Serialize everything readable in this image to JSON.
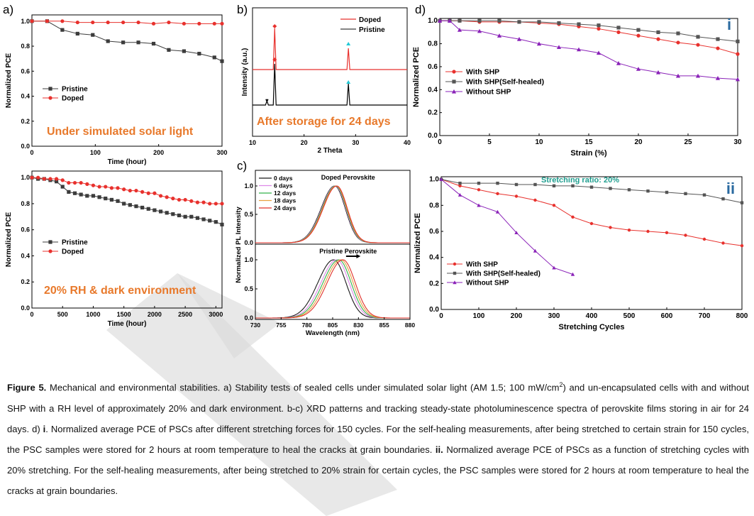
{
  "figure": {
    "panel_labels": [
      "a)",
      "b)",
      "c)",
      "d)"
    ],
    "caption": {
      "lead": "Figure 5.",
      "p1": " Mechanical and environmental stabilities. a) Stability tests of sealed cells under simulated solar light (AM 1.5; 100 mW/cm",
      "sup": "2",
      "p2": ") and un-encapsulated cells with and without SHP with a RH level of approximately 20% and dark environment. b-c) XRD patterns and tracking steady-state photoluminescence spectra of perovskite films storing in air for 24 days. d) ",
      "b_i": "i",
      "p3": ". Normalized average PCE of PSCs after different stretching forces for 150 cycles. For the self-healing measurements, after being stretched to certain strain for 150 cycles, the PSC samples were stored for 2 hours at room temperature to heal the cracks at grain boundaries. ",
      "b_ii": "ii.",
      "p4": " Normalized average PCE of PSCs as a function of stretching cycles with 20% stretching. For the self-healing measurements, after being stretched to 20% strain for certain cycles, the PSC samples were stored for 2 hours at room temperature to heal the cracks at grain boundaries."
    }
  },
  "colors": {
    "red": "#e8312d",
    "black": "#3c3c3c",
    "gray": "#555555",
    "purple": "#8a22b8",
    "cyan": "#22c9d6",
    "orange": "#e8792b",
    "pl": [
      "#1a1a1a",
      "#dd88e8",
      "#33b24a",
      "#e8a040",
      "#e0302a"
    ]
  },
  "chart_data": [
    {
      "id": "a_top",
      "type": "line",
      "annotation": "Under simulated solar light",
      "xlabel": "Time (hour)",
      "ylabel": "Normalized PCE",
      "xlim": [
        0,
        300
      ],
      "ylim": [
        0,
        1.05
      ],
      "xticks": [
        0,
        100,
        200,
        300
      ],
      "yticks": [
        0.0,
        0.2,
        0.4,
        0.6,
        0.8,
        1.0
      ],
      "legend": "bottom-left",
      "series": [
        {
          "name": "Pristine",
          "color": "black",
          "marker": "square",
          "x": [
            0,
            24,
            48,
            72,
            96,
            120,
            144,
            168,
            192,
            216,
            240,
            264,
            288,
            300
          ],
          "y": [
            1.0,
            1.0,
            0.93,
            0.9,
            0.89,
            0.84,
            0.83,
            0.83,
            0.82,
            0.77,
            0.76,
            0.74,
            0.71,
            0.68
          ]
        },
        {
          "name": "Doped",
          "color": "red",
          "marker": "circle",
          "x": [
            0,
            24,
            48,
            72,
            96,
            120,
            144,
            168,
            192,
            216,
            240,
            264,
            288,
            300
          ],
          "y": [
            1.0,
            1.0,
            1.0,
            0.99,
            0.99,
            0.99,
            0.99,
            0.99,
            0.98,
            0.99,
            0.98,
            0.98,
            0.98,
            0.98
          ]
        }
      ]
    },
    {
      "id": "a_bottom",
      "type": "line",
      "annotation": "20% RH & dark environment",
      "xlabel": "Time (hour)",
      "ylabel": "Normalized PCE",
      "xlim": [
        0,
        3100
      ],
      "ylim": [
        0,
        1.05
      ],
      "xticks": [
        0,
        500,
        1000,
        1500,
        2000,
        2500,
        3000
      ],
      "yticks": [
        0.0,
        0.2,
        0.4,
        0.6,
        0.8,
        1.0
      ],
      "legend": "bottom-left",
      "series": [
        {
          "name": "Pristine",
          "color": "black",
          "marker": "square",
          "x": [
            0,
            100,
            200,
            300,
            400,
            500,
            600,
            700,
            800,
            900,
            1000,
            1100,
            1200,
            1300,
            1400,
            1500,
            1600,
            1700,
            1800,
            1900,
            2000,
            2100,
            2200,
            2300,
            2400,
            2500,
            2600,
            2700,
            2800,
            2900,
            3000,
            3100
          ],
          "y": [
            1.0,
            0.99,
            0.99,
            0.98,
            0.97,
            0.93,
            0.89,
            0.88,
            0.87,
            0.86,
            0.86,
            0.85,
            0.84,
            0.83,
            0.82,
            0.8,
            0.79,
            0.78,
            0.77,
            0.76,
            0.75,
            0.74,
            0.73,
            0.72,
            0.71,
            0.7,
            0.7,
            0.69,
            0.68,
            0.67,
            0.66,
            0.64
          ]
        },
        {
          "name": "Doped",
          "color": "red",
          "marker": "circle",
          "x": [
            0,
            100,
            200,
            300,
            400,
            500,
            600,
            700,
            800,
            900,
            1000,
            1100,
            1200,
            1300,
            1400,
            1500,
            1600,
            1700,
            1800,
            1900,
            2000,
            2100,
            2200,
            2300,
            2400,
            2500,
            2600,
            2700,
            2800,
            2900,
            3000,
            3100
          ],
          "y": [
            1.0,
            1.0,
            0.99,
            0.99,
            0.99,
            0.98,
            0.96,
            0.96,
            0.96,
            0.95,
            0.94,
            0.93,
            0.93,
            0.92,
            0.92,
            0.91,
            0.9,
            0.9,
            0.89,
            0.88,
            0.88,
            0.86,
            0.85,
            0.84,
            0.83,
            0.83,
            0.82,
            0.81,
            0.81,
            0.8,
            0.8,
            0.8
          ]
        }
      ]
    },
    {
      "id": "b",
      "type": "line",
      "annotation": "After storage for 24 days",
      "xlabel": "2 Theta",
      "ylabel": "Intensity (a.u.)",
      "xlim": [
        10,
        40
      ],
      "xticks": [
        10,
        20,
        30,
        40
      ],
      "legend": "top-right",
      "peaks": {
        "doped": [
          14.3,
          28.6
        ],
        "pristine": [
          12.8,
          14.3,
          28.6
        ]
      },
      "series": [
        {
          "name": "Doped",
          "color": "red"
        },
        {
          "name": "Pristine",
          "color": "black"
        }
      ]
    },
    {
      "id": "c",
      "type": "line",
      "xlabel": "Wavelength (nm)",
      "ylabel": "Normalized PL Intensity",
      "xlim": [
        730,
        880
      ],
      "xticks": [
        730,
        755,
        780,
        805,
        830,
        855,
        880
      ],
      "yticks": [
        0.0,
        0.5,
        1.0
      ],
      "subtitles": [
        "Doped Perovskite",
        "Pristine Perovskite"
      ],
      "legend": "top-left",
      "series": [
        {
          "name": "0 days",
          "doped_peak": 807,
          "pristine_peak": 806
        },
        {
          "name": "6 days",
          "doped_peak": 807.5,
          "pristine_peak": 809
        },
        {
          "name": "12 days",
          "doped_peak": 808,
          "pristine_peak": 811
        },
        {
          "name": "18 days",
          "doped_peak": 808.5,
          "pristine_peak": 813
        },
        {
          "name": "24 days",
          "doped_peak": 809,
          "pristine_peak": 815
        }
      ]
    },
    {
      "id": "d_i",
      "type": "line",
      "tag": "i",
      "xlabel": "Strain (%)",
      "ylabel": "Normalized PCE",
      "xlim": [
        0,
        30
      ],
      "ylim": [
        0,
        1.02
      ],
      "xticks": [
        0,
        5,
        10,
        15,
        20,
        25,
        30
      ],
      "yticks": [
        0.0,
        0.2,
        0.4,
        0.6,
        0.8,
        1.0
      ],
      "legend": "middle-left",
      "series": [
        {
          "name": "With SHP",
          "color": "red",
          "marker": "circle",
          "x": [
            0,
            1,
            2,
            4,
            6,
            8,
            10,
            12,
            14,
            16,
            18,
            20,
            22,
            24,
            26,
            28,
            30
          ],
          "y": [
            1.0,
            1.0,
            1.0,
            0.99,
            0.99,
            0.99,
            0.98,
            0.97,
            0.95,
            0.93,
            0.9,
            0.87,
            0.84,
            0.81,
            0.79,
            0.76,
            0.71
          ]
        },
        {
          "name": "With SHP(Self-healed)",
          "color": "gray",
          "marker": "square",
          "x": [
            0,
            1,
            2,
            4,
            6,
            8,
            10,
            12,
            14,
            16,
            18,
            20,
            22,
            24,
            26,
            28,
            30
          ],
          "y": [
            1.0,
            1.0,
            1.0,
            1.0,
            1.0,
            0.99,
            0.99,
            0.98,
            0.97,
            0.96,
            0.94,
            0.92,
            0.9,
            0.89,
            0.86,
            0.84,
            0.82
          ]
        },
        {
          "name": "Without SHP",
          "color": "purple",
          "marker": "triangle",
          "x": [
            0,
            1,
            2,
            4,
            6,
            8,
            10,
            12,
            14,
            16,
            18,
            20,
            22,
            24,
            26,
            28,
            30
          ],
          "y": [
            1.0,
            1.0,
            0.92,
            0.91,
            0.87,
            0.84,
            0.8,
            0.77,
            0.75,
            0.72,
            0.63,
            0.58,
            0.55,
            0.52,
            0.52,
            0.5,
            0.49
          ]
        }
      ]
    },
    {
      "id": "d_ii",
      "type": "line",
      "tag": "ii",
      "annotation": "Stretching ratio: 20%",
      "xlabel": "Stretching Cycles",
      "ylabel": "Normalized PCE",
      "xlim": [
        0,
        800
      ],
      "ylim": [
        0,
        1.02
      ],
      "xticks": [
        0,
        100,
        200,
        300,
        400,
        500,
        600,
        700,
        800
      ],
      "yticks": [
        0.0,
        0.2,
        0.4,
        0.6,
        0.8,
        1.0
      ],
      "legend": "bottom-left",
      "series": [
        {
          "name": "With SHP",
          "color": "red",
          "marker": "circle",
          "x": [
            0,
            50,
            100,
            150,
            200,
            250,
            300,
            350,
            400,
            450,
            500,
            550,
            600,
            650,
            700,
            750,
            800
          ],
          "y": [
            1.0,
            0.95,
            0.92,
            0.89,
            0.87,
            0.84,
            0.8,
            0.71,
            0.66,
            0.63,
            0.61,
            0.6,
            0.59,
            0.57,
            0.54,
            0.51,
            0.49
          ]
        },
        {
          "name": "With SHP(Self-healed)",
          "color": "gray",
          "marker": "square",
          "x": [
            0,
            50,
            100,
            150,
            200,
            250,
            300,
            350,
            400,
            450,
            500,
            550,
            600,
            650,
            700,
            750,
            800
          ],
          "y": [
            1.0,
            0.97,
            0.97,
            0.97,
            0.96,
            0.96,
            0.95,
            0.95,
            0.94,
            0.93,
            0.92,
            0.91,
            0.9,
            0.89,
            0.88,
            0.85,
            0.82
          ]
        },
        {
          "name": "Without SHP",
          "color": "purple",
          "marker": "triangle",
          "x": [
            0,
            50,
            100,
            150,
            200,
            250,
            300,
            350
          ],
          "y": [
            1.0,
            0.88,
            0.8,
            0.75,
            0.59,
            0.45,
            0.32,
            0.27
          ]
        }
      ]
    }
  ]
}
